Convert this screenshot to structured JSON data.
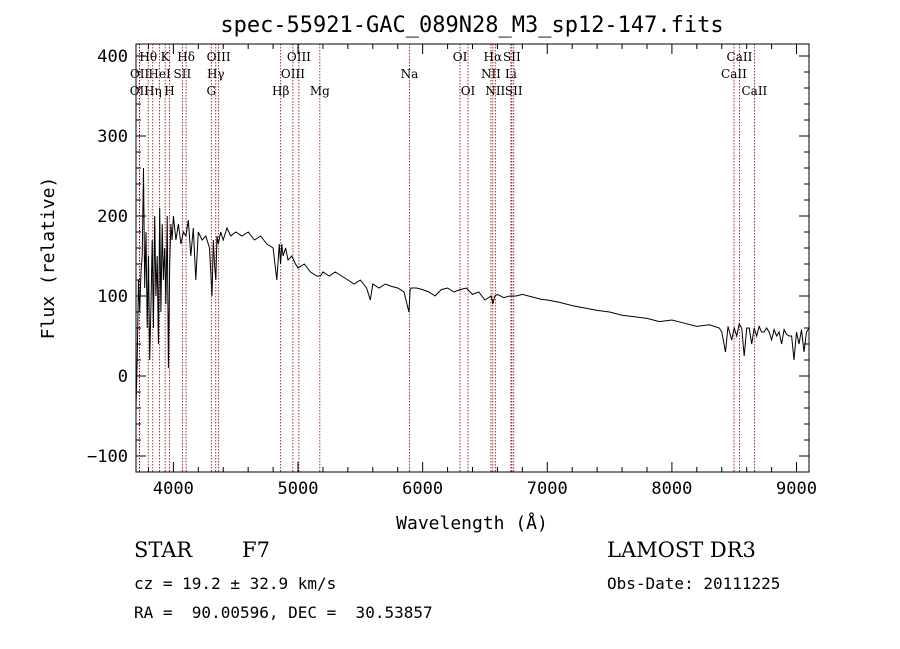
{
  "chart_data": {
    "type": "line",
    "title": "spec-55921-GAC_089N28_M3_sp12-147.fits",
    "xlabel": "Wavelength (Å)",
    "ylabel": "Flux (relative)",
    "xlim": [
      3700,
      9100
    ],
    "ylim": [
      -120,
      415
    ],
    "xticks": [
      4000,
      5000,
      6000,
      7000,
      8000,
      9000
    ],
    "yticks": [
      -100,
      0,
      100,
      200,
      300,
      400
    ],
    "xtick_labels": [
      "4000",
      "5000",
      "6000",
      "7000",
      "8000",
      "9000"
    ],
    "ytick_labels": [
      "−100",
      "0",
      "100",
      "200",
      "300",
      "400"
    ],
    "series": [
      {
        "name": "flux",
        "x": [
          3700,
          3710,
          3720,
          3730,
          3740,
          3750,
          3760,
          3770,
          3780,
          3790,
          3800,
          3810,
          3820,
          3830,
          3840,
          3850,
          3860,
          3870,
          3880,
          3890,
          3900,
          3910,
          3920,
          3930,
          3940,
          3950,
          3960,
          3970,
          3980,
          3990,
          4000,
          4020,
          4040,
          4060,
          4080,
          4100,
          4120,
          4140,
          4160,
          4180,
          4200,
          4230,
          4260,
          4290,
          4310,
          4320,
          4330,
          4340,
          4350,
          4360,
          4380,
          4400,
          4430,
          4460,
          4500,
          4550,
          4600,
          4650,
          4700,
          4750,
          4800,
          4830,
          4850,
          4860,
          4870,
          4880,
          4900,
          4920,
          4950,
          4980,
          5000,
          5050,
          5100,
          5150,
          5180,
          5200,
          5250,
          5300,
          5350,
          5400,
          5450,
          5500,
          5550,
          5580,
          5600,
          5650,
          5700,
          5750,
          5800,
          5850,
          5890,
          5900,
          5910,
          5950,
          6000,
          6050,
          6100,
          6150,
          6200,
          6250,
          6300,
          6350,
          6400,
          6450,
          6500,
          6550,
          6563,
          6580,
          6600,
          6650,
          6700,
          6750,
          6800,
          6850,
          6900,
          6950,
          7000,
          7100,
          7200,
          7300,
          7400,
          7500,
          7600,
          7700,
          7800,
          7900,
          8000,
          8100,
          8200,
          8300,
          8380,
          8400,
          8430,
          8450,
          8480,
          8500,
          8520,
          8540,
          8560,
          8580,
          8600,
          8620,
          8640,
          8660,
          8680,
          8700,
          8720,
          8740,
          8760,
          8780,
          8800,
          8820,
          8840,
          8860,
          8880,
          8900,
          8920,
          8940,
          8960,
          8980,
          9000,
          9020,
          9040,
          9060,
          9080,
          9100
        ],
        "values": [
          -40,
          20,
          120,
          80,
          130,
          150,
          260,
          110,
          180,
          60,
          150,
          20,
          90,
          170,
          60,
          200,
          100,
          150,
          40,
          210,
          80,
          190,
          120,
          160,
          90,
          200,
          10,
          140,
          190,
          170,
          200,
          170,
          190,
          165,
          180,
          175,
          195,
          150,
          185,
          120,
          180,
          170,
          175,
          160,
          100,
          170,
          140,
          120,
          175,
          165,
          180,
          170,
          185,
          175,
          180,
          175,
          180,
          170,
          175,
          165,
          160,
          120,
          165,
          140,
          165,
          150,
          160,
          145,
          150,
          140,
          135,
          140,
          130,
          125,
          125,
          130,
          125,
          130,
          125,
          120,
          115,
          120,
          110,
          95,
          115,
          110,
          115,
          112,
          110,
          105,
          80,
          108,
          110,
          110,
          108,
          105,
          100,
          108,
          110,
          105,
          108,
          110,
          102,
          105,
          95,
          100,
          90,
          100,
          102,
          98,
          100,
          100,
          102,
          100,
          98,
          96,
          95,
          92,
          88,
          85,
          82,
          80,
          76,
          74,
          72,
          68,
          70,
          66,
          62,
          64,
          60,
          55,
          30,
          62,
          45,
          60,
          50,
          65,
          60,
          25,
          60,
          60,
          40,
          60,
          50,
          62,
          55,
          55,
          60,
          55,
          45,
          58,
          50,
          55,
          40,
          58,
          52,
          50,
          50,
          20,
          55,
          40,
          58,
          30,
          55,
          60
        ]
      }
    ],
    "lines": [
      {
        "name": "OII",
        "wave": 3727,
        "row": 3
      },
      {
        "name": "OII",
        "wave": 3729,
        "row": 2
      },
      {
        "name": "Hθ",
        "wave": 3798,
        "row": 1
      },
      {
        "name": "Hη",
        "wave": 3835,
        "row": 3
      },
      {
        "name": "HeI",
        "wave": 3889,
        "row": 2
      },
      {
        "name": "K",
        "wave": 3934,
        "row": 1
      },
      {
        "name": "H",
        "wave": 3969,
        "row": 3
      },
      {
        "name": "SII",
        "wave": 4072,
        "row": 2
      },
      {
        "name": "Hδ",
        "wave": 4102,
        "row": 1
      },
      {
        "name": "G",
        "wave": 4304,
        "row": 3
      },
      {
        "name": "Hγ",
        "wave": 4340,
        "row": 2
      },
      {
        "name": "OIII",
        "wave": 4363,
        "row": 1
      },
      {
        "name": "Hβ",
        "wave": 4861,
        "row": 3
      },
      {
        "name": "OIII",
        "wave": 4959,
        "row": 2
      },
      {
        "name": "OIII",
        "wave": 5007,
        "row": 1
      },
      {
        "name": "Mg",
        "wave": 5175,
        "row": 3
      },
      {
        "name": "Na",
        "wave": 5894,
        "row": 2
      },
      {
        "name": "OI",
        "wave": 6300,
        "row": 1
      },
      {
        "name": "OI",
        "wave": 6364,
        "row": 3
      },
      {
        "name": "NII",
        "wave": 6548,
        "row": 2
      },
      {
        "name": "Hα",
        "wave": 6563,
        "row": 1
      },
      {
        "name": "NII",
        "wave": 6583,
        "row": 3
      },
      {
        "name": "Li",
        "wave": 6708,
        "row": 2
      },
      {
        "name": "SII",
        "wave": 6716,
        "row": 1
      },
      {
        "name": "SII",
        "wave": 6731,
        "row": 3
      },
      {
        "name": "CaII",
        "wave": 8498,
        "row": 2
      },
      {
        "name": "CaII",
        "wave": 8542,
        "row": 1
      },
      {
        "name": "CaII",
        "wave": 8662,
        "row": 3
      }
    ]
  },
  "info": {
    "object_class": "STAR",
    "subclass": "F7",
    "survey": "LAMOST DR3",
    "redshift_line": "cz = 19.2 ± 32.9 km/s",
    "obs_date_line": "Obs-Date: 20111225",
    "coords_line": "RA =  90.00596, DEC =  30.53857"
  },
  "colors": {
    "spectrum": "#000000",
    "emission_lines": "#8b0000",
    "axes": "#000000"
  }
}
